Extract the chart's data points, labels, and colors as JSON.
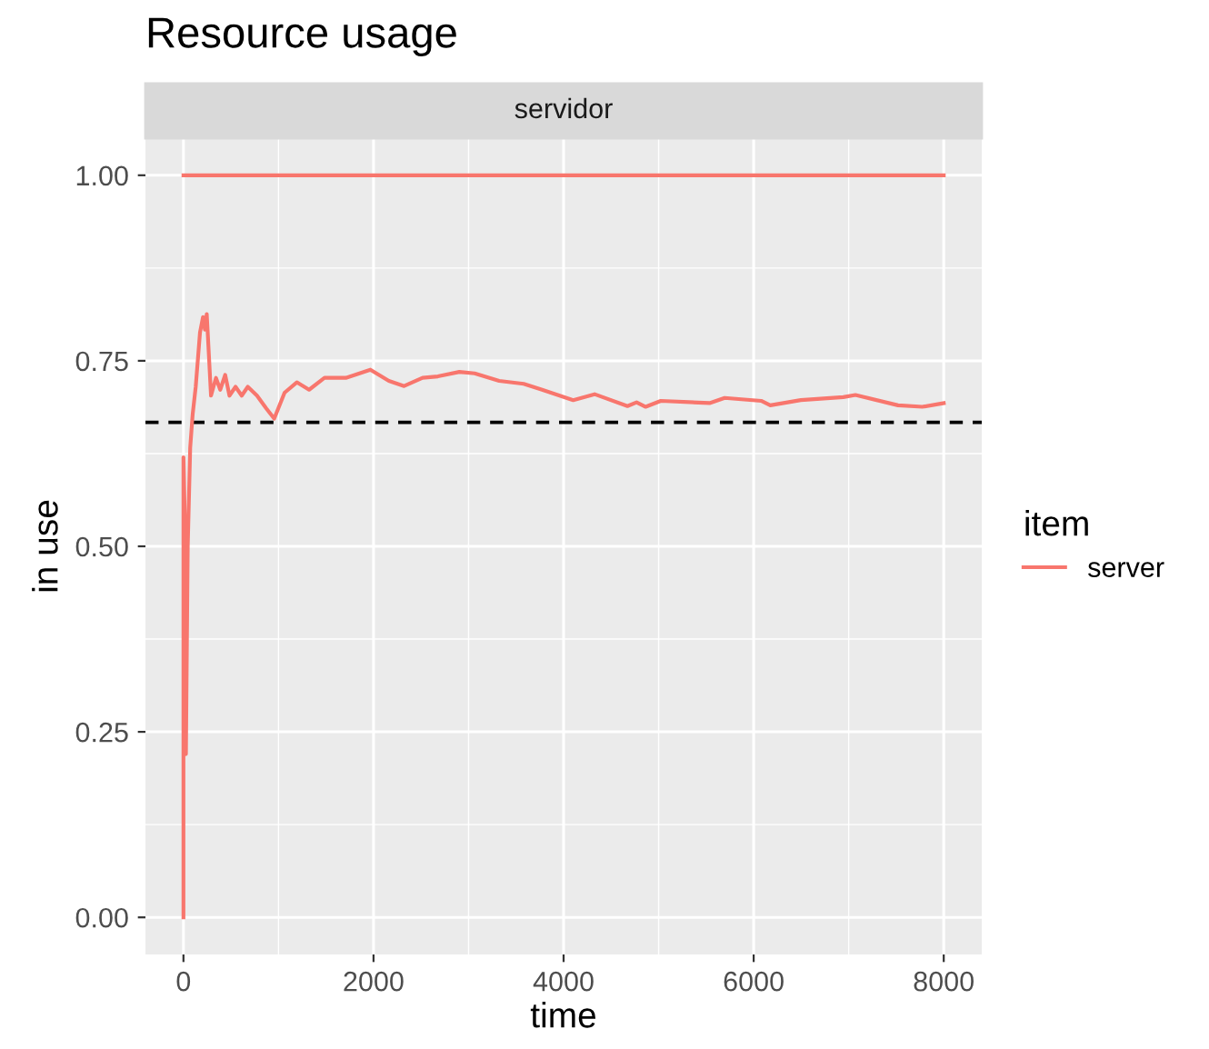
{
  "chart_data": {
    "type": "line",
    "title": "Resource usage",
    "subtitle": "servidor",
    "xlabel": "time",
    "ylabel": "in use",
    "legend_title": "item",
    "series": [
      {
        "name": "server",
        "color": "#f8766d",
        "x": [
          0,
          0,
          19,
          26,
          45,
          71,
          97,
          129,
          174,
          206,
          226,
          245,
          290,
          342,
          387,
          439,
          484,
          548,
          613,
          677,
          774,
          871,
          955,
          1064,
          1193,
          1322,
          1484,
          1709,
          1967,
          2161,
          2322,
          2516,
          2677,
          2903,
          3064,
          3322,
          3580,
          3774,
          4101,
          4326,
          4672,
          4768,
          4864,
          5023,
          5536,
          5695,
          6079,
          6175,
          6496,
          6943,
          7071,
          7519,
          7775,
          8000
        ],
        "values": [
          0.0,
          0.62,
          0.51,
          0.22,
          0.5,
          0.633,
          0.678,
          0.715,
          0.788,
          0.809,
          0.792,
          0.813,
          0.703,
          0.727,
          0.711,
          0.731,
          0.703,
          0.715,
          0.703,
          0.715,
          0.703,
          0.686,
          0.672,
          0.707,
          0.721,
          0.711,
          0.727,
          0.727,
          0.738,
          0.723,
          0.716,
          0.727,
          0.729,
          0.735,
          0.733,
          0.723,
          0.719,
          0.711,
          0.697,
          0.705,
          0.689,
          0.694,
          0.688,
          0.696,
          0.693,
          0.7,
          0.696,
          0.69,
          0.697,
          0.701,
          0.704,
          0.69,
          0.688,
          0.693
        ]
      },
      {
        "color": "#f8766d",
        "x": [
          0,
          8000
        ],
        "values": [
          1,
          1
        ]
      }
    ],
    "ref_lines": [
      {
        "axis": "y",
        "value": 0.667,
        "color": "#000000",
        "line_style": "dashed"
      }
    ],
    "xlim": [
      -400,
      8400
    ],
    "ylim": [
      -0.05,
      1.05
    ],
    "xticks": [
      0,
      2000,
      4000,
      6000,
      8000
    ],
    "yticks": [
      {
        "value": 0,
        "label": "0.00"
      },
      {
        "value": 0.25,
        "label": "0.25"
      },
      {
        "value": 0.5,
        "label": "0.50"
      },
      {
        "value": 0.75,
        "label": "0.75"
      },
      {
        "value": 1,
        "label": "1.00"
      }
    ],
    "grid": true,
    "legend": "right"
  }
}
